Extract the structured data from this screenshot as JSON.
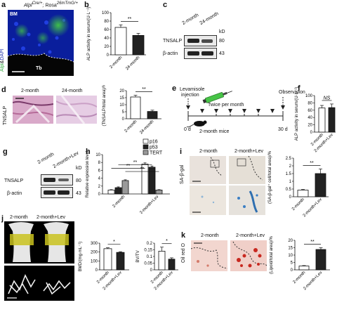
{
  "panel_a": {
    "label": "a",
    "title_gene": "Alpl",
    "title_sup1": "Cre/+",
    "title_sep": ";",
    "title_rosa": "Rosa",
    "title_sup2": "26mTmG/+",
    "stain_left": "Alpl",
    "stain_amp": "&",
    "stain_right": "DAPI",
    "bm_label": "BM",
    "tb_label": "Tb"
  },
  "panel_b": {
    "label": "b"
  },
  "panel_c": {
    "label": "c",
    "lane1": "2-month",
    "lane2": "24-month",
    "kd": "kD",
    "row1": "TNSALP",
    "row1_kd": "80",
    "row2": "β-actin",
    "row2_kd": "43"
  },
  "panel_d": {
    "label": "d",
    "col1": "2-month",
    "col2": "24-month",
    "row": "TNSALP"
  },
  "panel_e": {
    "label": "e",
    "drug_line1": "Levamisole",
    "drug_line2": "injection",
    "freq": "Twice per month",
    "observation": "Observation",
    "day0": "0 d",
    "mice": "2-month mice",
    "day30": "30 d"
  },
  "panel_f": {
    "label": "f"
  },
  "panel_g": {
    "label": "g",
    "lane1": "2-month",
    "lane2": "2-month+Lev",
    "kd": "kD",
    "row1": "TNSALP",
    "row1_kd": "80",
    "row2": "β-actin",
    "row2_kd": "43"
  },
  "panel_h": {
    "label": "h"
  },
  "panel_i": {
    "label": "i",
    "col1": "2-month",
    "col2": "2-month+Lev",
    "row": "SA-β-gal"
  },
  "panel_j": {
    "label": "j",
    "col1": "2-month",
    "col2": "2-month+Lev"
  },
  "panel_k": {
    "label": "k",
    "col1": "2-month",
    "col2": "2-month+Lev",
    "row": "Oil red O"
  },
  "chart_data": [
    {
      "panel": "b",
      "type": "bar",
      "categories": [
        "2-month",
        "24-month"
      ],
      "values": [
        65,
        46
      ],
      "errors": [
        6,
        5
      ],
      "fills": [
        "#ffffff",
        "#222222"
      ],
      "ylabel": "ALP activity in serum/(U·L⁻¹)",
      "ylim": [
        0,
        100
      ],
      "yticks": [
        0,
        20,
        40,
        60,
        80,
        100
      ],
      "sig": [
        {
          "from": 0,
          "to": 1,
          "text": "**"
        }
      ]
    },
    {
      "panel": "d",
      "type": "bar",
      "categories": [
        "2-month",
        "24-month"
      ],
      "values": [
        15.5,
        5.2
      ],
      "errors": [
        1.2,
        0.9
      ],
      "fills": [
        "#ffffff",
        "#222222"
      ],
      "ylabel": "(TNSALP/total area)/%",
      "ylim": [
        0,
        20
      ],
      "yticks": [
        0,
        5,
        10,
        15,
        20
      ],
      "sig": [
        {
          "from": 0,
          "to": 1,
          "text": "**"
        }
      ]
    },
    {
      "panel": "f",
      "type": "bar",
      "categories": [
        "2-month",
        "2-month+Lev"
      ],
      "values": [
        66,
        67
      ],
      "errors": [
        7,
        10
      ],
      "fills": [
        "#ffffff",
        "#222222"
      ],
      "ylabel": "ALP activity in serum/(U·L⁻¹)",
      "ylim": [
        0,
        100
      ],
      "yticks": [
        0,
        20,
        40,
        60,
        80,
        100
      ],
      "sig": [
        {
          "from": 0,
          "to": 1,
          "text": "NS"
        }
      ]
    },
    {
      "panel": "h",
      "type": "bar",
      "categories": [
        "2-month",
        "2-month+Lev"
      ],
      "series": [
        {
          "name": "p16",
          "values": [
            1.0,
            7.6
          ],
          "errors": [
            0.1,
            0.3
          ],
          "fill": "#ffffff"
        },
        {
          "name": "p53",
          "values": [
            1.6,
            6.8
          ],
          "errors": [
            0.2,
            0.3
          ],
          "fill": "#222222"
        },
        {
          "name": "TERT",
          "values": [
            3.4,
            1.0
          ],
          "errors": [
            0.2,
            0.1
          ],
          "fill": "#9a9a9a"
        }
      ],
      "ylabel": "Relative expression level",
      "ylim": [
        0,
        10
      ],
      "yticks": [
        0,
        2,
        4,
        6,
        8,
        10
      ],
      "sig": [
        {
          "g1": 0,
          "s1": 0,
          "g2": 1,
          "s2": 0,
          "text": "**"
        },
        {
          "g1": 0,
          "s1": 1,
          "g2": 1,
          "s2": 1,
          "text": "**"
        },
        {
          "g1": 0,
          "s1": 2,
          "g2": 1,
          "s2": 2,
          "text": "**"
        }
      ]
    },
    {
      "panel": "i",
      "type": "bar",
      "categories": [
        "2-month",
        "2-month+Lev"
      ],
      "values": [
        0.43,
        1.5
      ],
      "errors": [
        0.04,
        0.3
      ],
      "fills": [
        "#ffffff",
        "#222222"
      ],
      "ylabel": "(SA-β-gal⁺ cell/total area)/%",
      "ylim": [
        0,
        2.5
      ],
      "yticks": [
        0,
        0.5,
        1.0,
        1.5,
        2.0,
        2.5
      ],
      "sig": [
        {
          "from": 0,
          "to": 1,
          "text": "**"
        }
      ]
    },
    {
      "panel": "j1",
      "type": "bar",
      "categories": [
        "2-month",
        "2-month+Lev"
      ],
      "values": [
        238,
        196
      ],
      "errors": [
        10,
        8
      ],
      "fills": [
        "#ffffff",
        "#222222"
      ],
      "ylabel": "BMD/(mg·mL⁻¹)",
      "ylim": [
        0,
        300
      ],
      "yticks": [
        0,
        100,
        200,
        300
      ],
      "sig": [
        {
          "from": 0,
          "to": 1,
          "text": "*"
        }
      ]
    },
    {
      "panel": "j2",
      "type": "bar",
      "categories": [
        "2-month",
        "2-month+Lev"
      ],
      "values": [
        0.14,
        0.08
      ],
      "errors": [
        0.03,
        0.01
      ],
      "fills": [
        "#ffffff",
        "#222222"
      ],
      "ylabel": "BV/TV",
      "ylim": [
        0,
        0.2
      ],
      "yticks": [
        0,
        0.05,
        0.1,
        0.15,
        0.2
      ],
      "sig": [
        {
          "from": 0,
          "to": 1,
          "text": "*"
        }
      ]
    },
    {
      "panel": "k",
      "type": "bar",
      "categories": [
        "2-month",
        "2-month+Lev"
      ],
      "values": [
        2.6,
        13.8
      ],
      "errors": [
        0.3,
        1.2
      ],
      "fills": [
        "#ffffff",
        "#222222"
      ],
      "ylabel": "(Lipoid/total area)/%",
      "ylim": [
        0,
        20
      ],
      "yticks": [
        0,
        5,
        10,
        15,
        20
      ],
      "sig": [
        {
          "from": 0,
          "to": 1,
          "text": "**"
        }
      ]
    }
  ]
}
